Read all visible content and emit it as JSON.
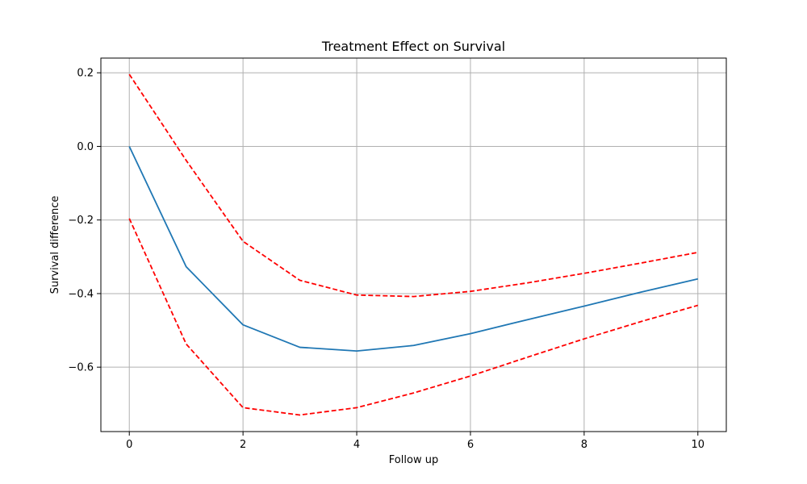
{
  "chart_data": {
    "type": "line",
    "title": "Treatment Effect on Survival",
    "xlabel": "Follow up",
    "ylabel": "Survival difference",
    "xlim": [
      -0.5,
      10.5
    ],
    "ylim": [
      -0.775,
      0.24
    ],
    "xticks": [
      0,
      2,
      4,
      6,
      8,
      10
    ],
    "xtick_labels": [
      "0",
      "2",
      "4",
      "6",
      "8",
      "10"
    ],
    "yticks": [
      0.2,
      0.0,
      -0.2,
      -0.4,
      -0.6
    ],
    "ytick_labels": [
      "0.2",
      "0.0",
      "−0.2",
      "−0.4",
      "−0.6"
    ],
    "grid": true,
    "x": [
      0,
      1,
      2,
      3,
      4,
      5,
      6,
      7,
      8,
      9,
      10
    ],
    "series": [
      {
        "key": "estimate",
        "color": "#1f77b4",
        "style": "solid",
        "values": [
          0.0,
          -0.327,
          -0.485,
          -0.546,
          -0.556,
          -0.541,
          -0.509,
          -0.471,
          -0.434,
          -0.396,
          -0.36
        ]
      },
      {
        "key": "upper",
        "color": "#ff0000",
        "style": "dashed",
        "values": [
          0.196,
          -0.038,
          -0.258,
          -0.364,
          -0.404,
          -0.408,
          -0.394,
          -0.371,
          -0.345,
          -0.317,
          -0.288
        ]
      },
      {
        "key": "lower",
        "color": "#ff0000",
        "style": "dashed",
        "values": [
          -0.196,
          -0.537,
          -0.71,
          -0.73,
          -0.71,
          -0.67,
          -0.624,
          -0.573,
          -0.523,
          -0.476,
          -0.432
        ]
      }
    ]
  }
}
